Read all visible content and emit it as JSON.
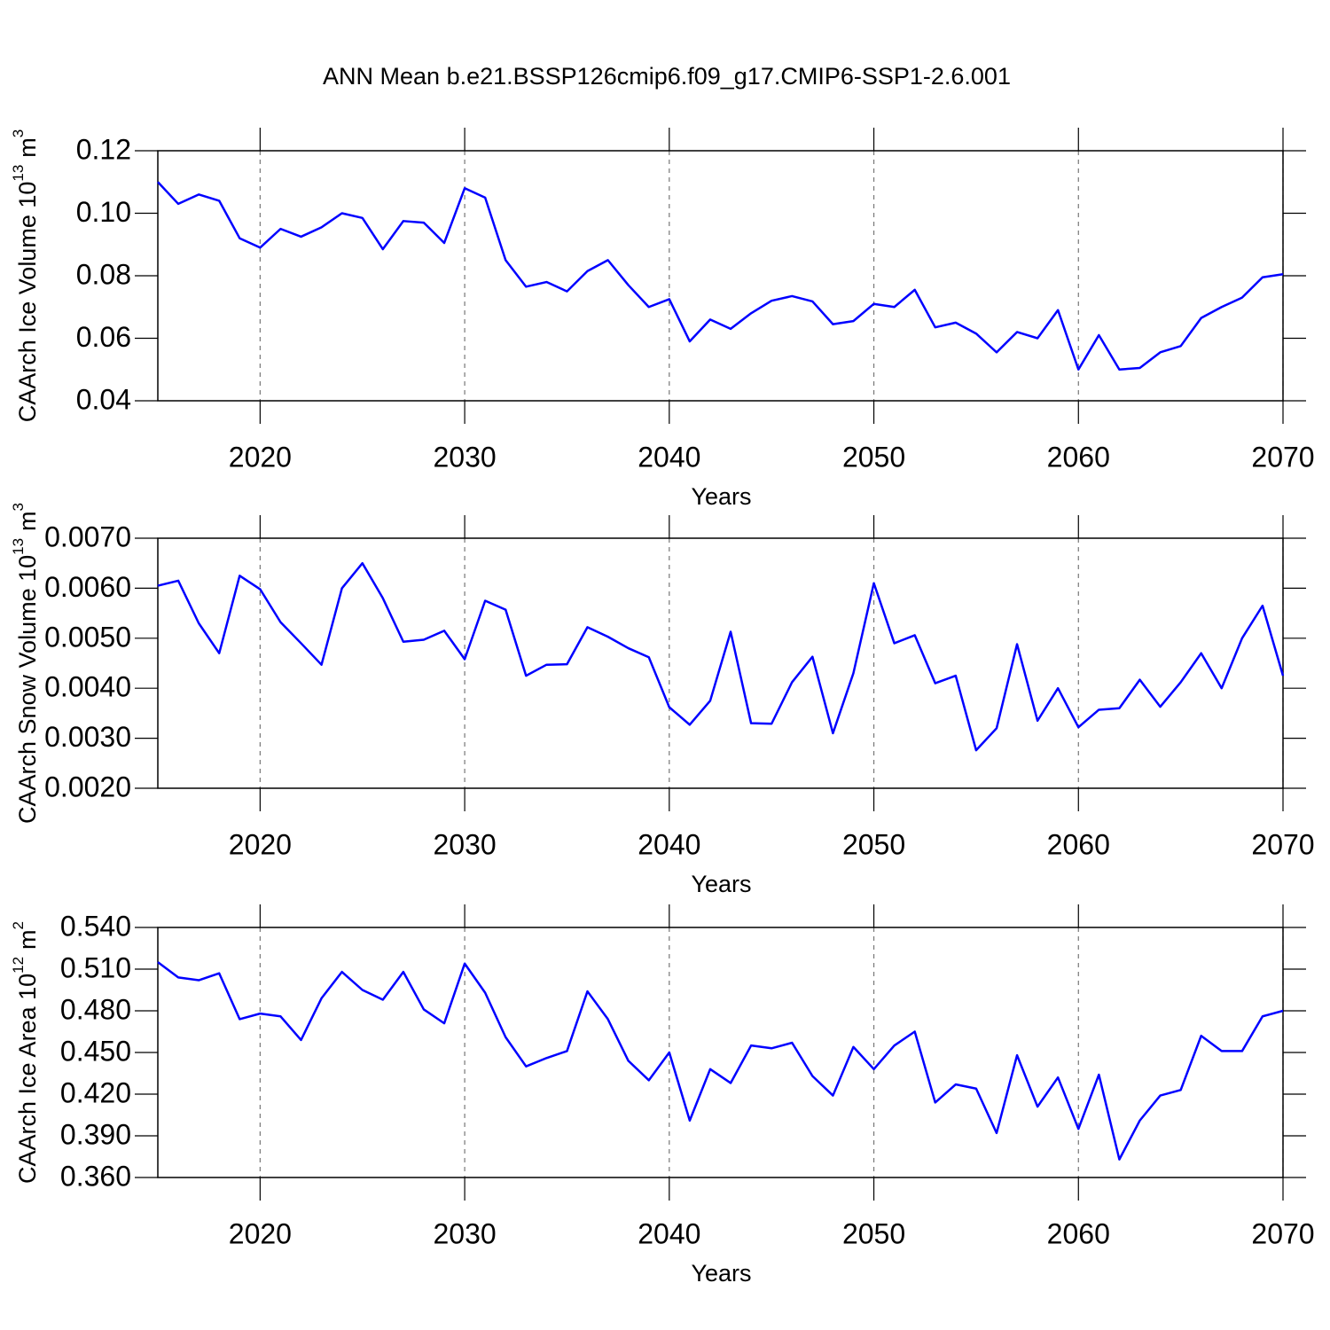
{
  "chart_data": [
    {
      "type": "line",
      "title": "ANN Mean b.e21.BSSP126cmip6.f09_g17.CMIP6-SSP1-2.6.001",
      "xlabel": "Years",
      "ylabel": {
        "text": "CAArch Ice Volume 10",
        "exp": "13",
        "unit": "m",
        "unit_exp": "3"
      },
      "x": [
        2015,
        2016,
        2017,
        2018,
        2019,
        2020,
        2021,
        2022,
        2023,
        2024,
        2025,
        2026,
        2027,
        2028,
        2029,
        2030,
        2031,
        2032,
        2033,
        2034,
        2035,
        2036,
        2037,
        2038,
        2039,
        2040,
        2041,
        2042,
        2043,
        2044,
        2045,
        2046,
        2047,
        2048,
        2049,
        2050,
        2051,
        2052,
        2053,
        2054,
        2055,
        2056,
        2057,
        2058,
        2059,
        2060,
        2061,
        2062,
        2063,
        2064,
        2065,
        2066,
        2067,
        2068,
        2069,
        2070
      ],
      "series": [
        {
          "color": "#0000ff",
          "values": [
            0.11,
            0.103,
            0.106,
            0.104,
            0.092,
            0.089,
            0.095,
            0.0925,
            0.0955,
            0.1,
            0.0985,
            0.0885,
            0.0975,
            0.097,
            0.0905,
            0.108,
            0.105,
            0.085,
            0.0765,
            0.078,
            0.075,
            0.0815,
            0.085,
            0.077,
            0.07,
            0.0725,
            0.059,
            0.066,
            0.063,
            0.068,
            0.072,
            0.0735,
            0.0718,
            0.0645,
            0.0655,
            0.071,
            0.07,
            0.0755,
            0.0635,
            0.065,
            0.0615,
            0.0555,
            0.062,
            0.06,
            0.069,
            0.05,
            0.061,
            0.05,
            0.0505,
            0.0555,
            0.0575,
            0.0665,
            0.07,
            0.073,
            0.0795,
            0.0805
          ]
        }
      ],
      "xlim": [
        2015,
        2070
      ],
      "xticks": [
        2020,
        2030,
        2040,
        2050,
        2060,
        2070
      ],
      "ylim": [
        0.04,
        0.12
      ],
      "yticks": [
        0.04,
        0.06,
        0.08,
        {
          "value": 0.1,
          "label": "0.10"
        },
        0.12
      ],
      "xgrid": true
    },
    {
      "type": "line",
      "xlabel": "Years",
      "ylabel": {
        "text": "CAArch Snow Volume 10",
        "exp": "13",
        "unit": "m",
        "unit_exp": "3"
      },
      "x": [
        2015,
        2016,
        2017,
        2018,
        2019,
        2020,
        2021,
        2022,
        2023,
        2024,
        2025,
        2026,
        2027,
        2028,
        2029,
        2030,
        2031,
        2032,
        2033,
        2034,
        2035,
        2036,
        2037,
        2038,
        2039,
        2040,
        2041,
        2042,
        2043,
        2044,
        2045,
        2046,
        2047,
        2048,
        2049,
        2050,
        2051,
        2052,
        2053,
        2054,
        2055,
        2056,
        2057,
        2058,
        2059,
        2060,
        2061,
        2062,
        2063,
        2064,
        2065,
        2066,
        2067,
        2068,
        2069,
        2070
      ],
      "series": [
        {
          "color": "#0000ff",
          "values": [
            0.00605,
            0.00615,
            0.0053,
            0.0047,
            0.00625,
            0.00598,
            0.00532,
            0.0049,
            0.00447,
            0.006,
            0.0065,
            0.0058,
            0.00493,
            0.00497,
            0.00515,
            0.00458,
            0.00575,
            0.00557,
            0.00425,
            0.00447,
            0.00448,
            0.00522,
            0.00503,
            0.0048,
            0.00462,
            0.00362,
            0.00327,
            0.00375,
            0.00513,
            0.0033,
            0.00329,
            0.00412,
            0.00463,
            0.0031,
            0.0043,
            0.0061,
            0.0049,
            0.00506,
            0.0041,
            0.00425,
            0.00276,
            0.0032,
            0.00488,
            0.00335,
            0.004,
            0.00322,
            0.00357,
            0.0036,
            0.00417,
            0.00363,
            0.00412,
            0.0047,
            0.004,
            0.005,
            0.00565,
            0.00425
          ]
        }
      ],
      "xlim": [
        2015,
        2070
      ],
      "xticks": [
        2020,
        2030,
        2040,
        2050,
        2060,
        2070
      ],
      "ylim": [
        0.002,
        0.007
      ],
      "yticks": [
        {
          "value": 0.002,
          "label": "0.0020"
        },
        {
          "value": 0.003,
          "label": "0.0030"
        },
        {
          "value": 0.004,
          "label": "0.0040"
        },
        {
          "value": 0.005,
          "label": "0.0050"
        },
        {
          "value": 0.006,
          "label": "0.0060"
        },
        {
          "value": 0.007,
          "label": "0.0070"
        }
      ],
      "xgrid": true
    },
    {
      "type": "line",
      "xlabel": "Years",
      "ylabel": {
        "text": "CAArch Ice Area 10",
        "exp": "12",
        "unit": "m",
        "unit_exp": "2"
      },
      "x": [
        2015,
        2016,
        2017,
        2018,
        2019,
        2020,
        2021,
        2022,
        2023,
        2024,
        2025,
        2026,
        2027,
        2028,
        2029,
        2030,
        2031,
        2032,
        2033,
        2034,
        2035,
        2036,
        2037,
        2038,
        2039,
        2040,
        2041,
        2042,
        2043,
        2044,
        2045,
        2046,
        2047,
        2048,
        2049,
        2050,
        2051,
        2052,
        2053,
        2054,
        2055,
        2056,
        2057,
        2058,
        2059,
        2060,
        2061,
        2062,
        2063,
        2064,
        2065,
        2066,
        2067,
        2068,
        2069,
        2070
      ],
      "series": [
        {
          "color": "#0000ff",
          "values": [
            0.515,
            0.504,
            0.502,
            0.507,
            0.474,
            0.478,
            0.476,
            0.459,
            0.489,
            0.508,
            0.495,
            0.488,
            0.508,
            0.481,
            0.471,
            0.514,
            0.493,
            0.461,
            0.44,
            0.446,
            0.451,
            0.494,
            0.474,
            0.444,
            0.43,
            0.45,
            0.401,
            0.438,
            0.428,
            0.455,
            0.453,
            0.457,
            0.433,
            0.419,
            0.454,
            0.438,
            0.455,
            0.465,
            0.414,
            0.427,
            0.424,
            0.392,
            0.448,
            0.411,
            0.432,
            0.395,
            0.434,
            0.373,
            0.401,
            0.419,
            0.423,
            0.462,
            0.451,
            0.451,
            0.476,
            0.48
          ]
        }
      ],
      "xlim": [
        2015,
        2070
      ],
      "xticks": [
        2020,
        2030,
        2040,
        2050,
        2060,
        2070
      ],
      "ylim": [
        0.36,
        0.54
      ],
      "yticks": [
        {
          "value": 0.36,
          "label": "0.360"
        },
        {
          "value": 0.39,
          "label": "0.390"
        },
        {
          "value": 0.42,
          "label": "0.420"
        },
        {
          "value": 0.45,
          "label": "0.450"
        },
        {
          "value": 0.48,
          "label": "0.480"
        },
        {
          "value": 0.51,
          "label": "0.510"
        },
        {
          "value": 0.54,
          "label": "0.540"
        }
      ],
      "xgrid": true
    }
  ]
}
